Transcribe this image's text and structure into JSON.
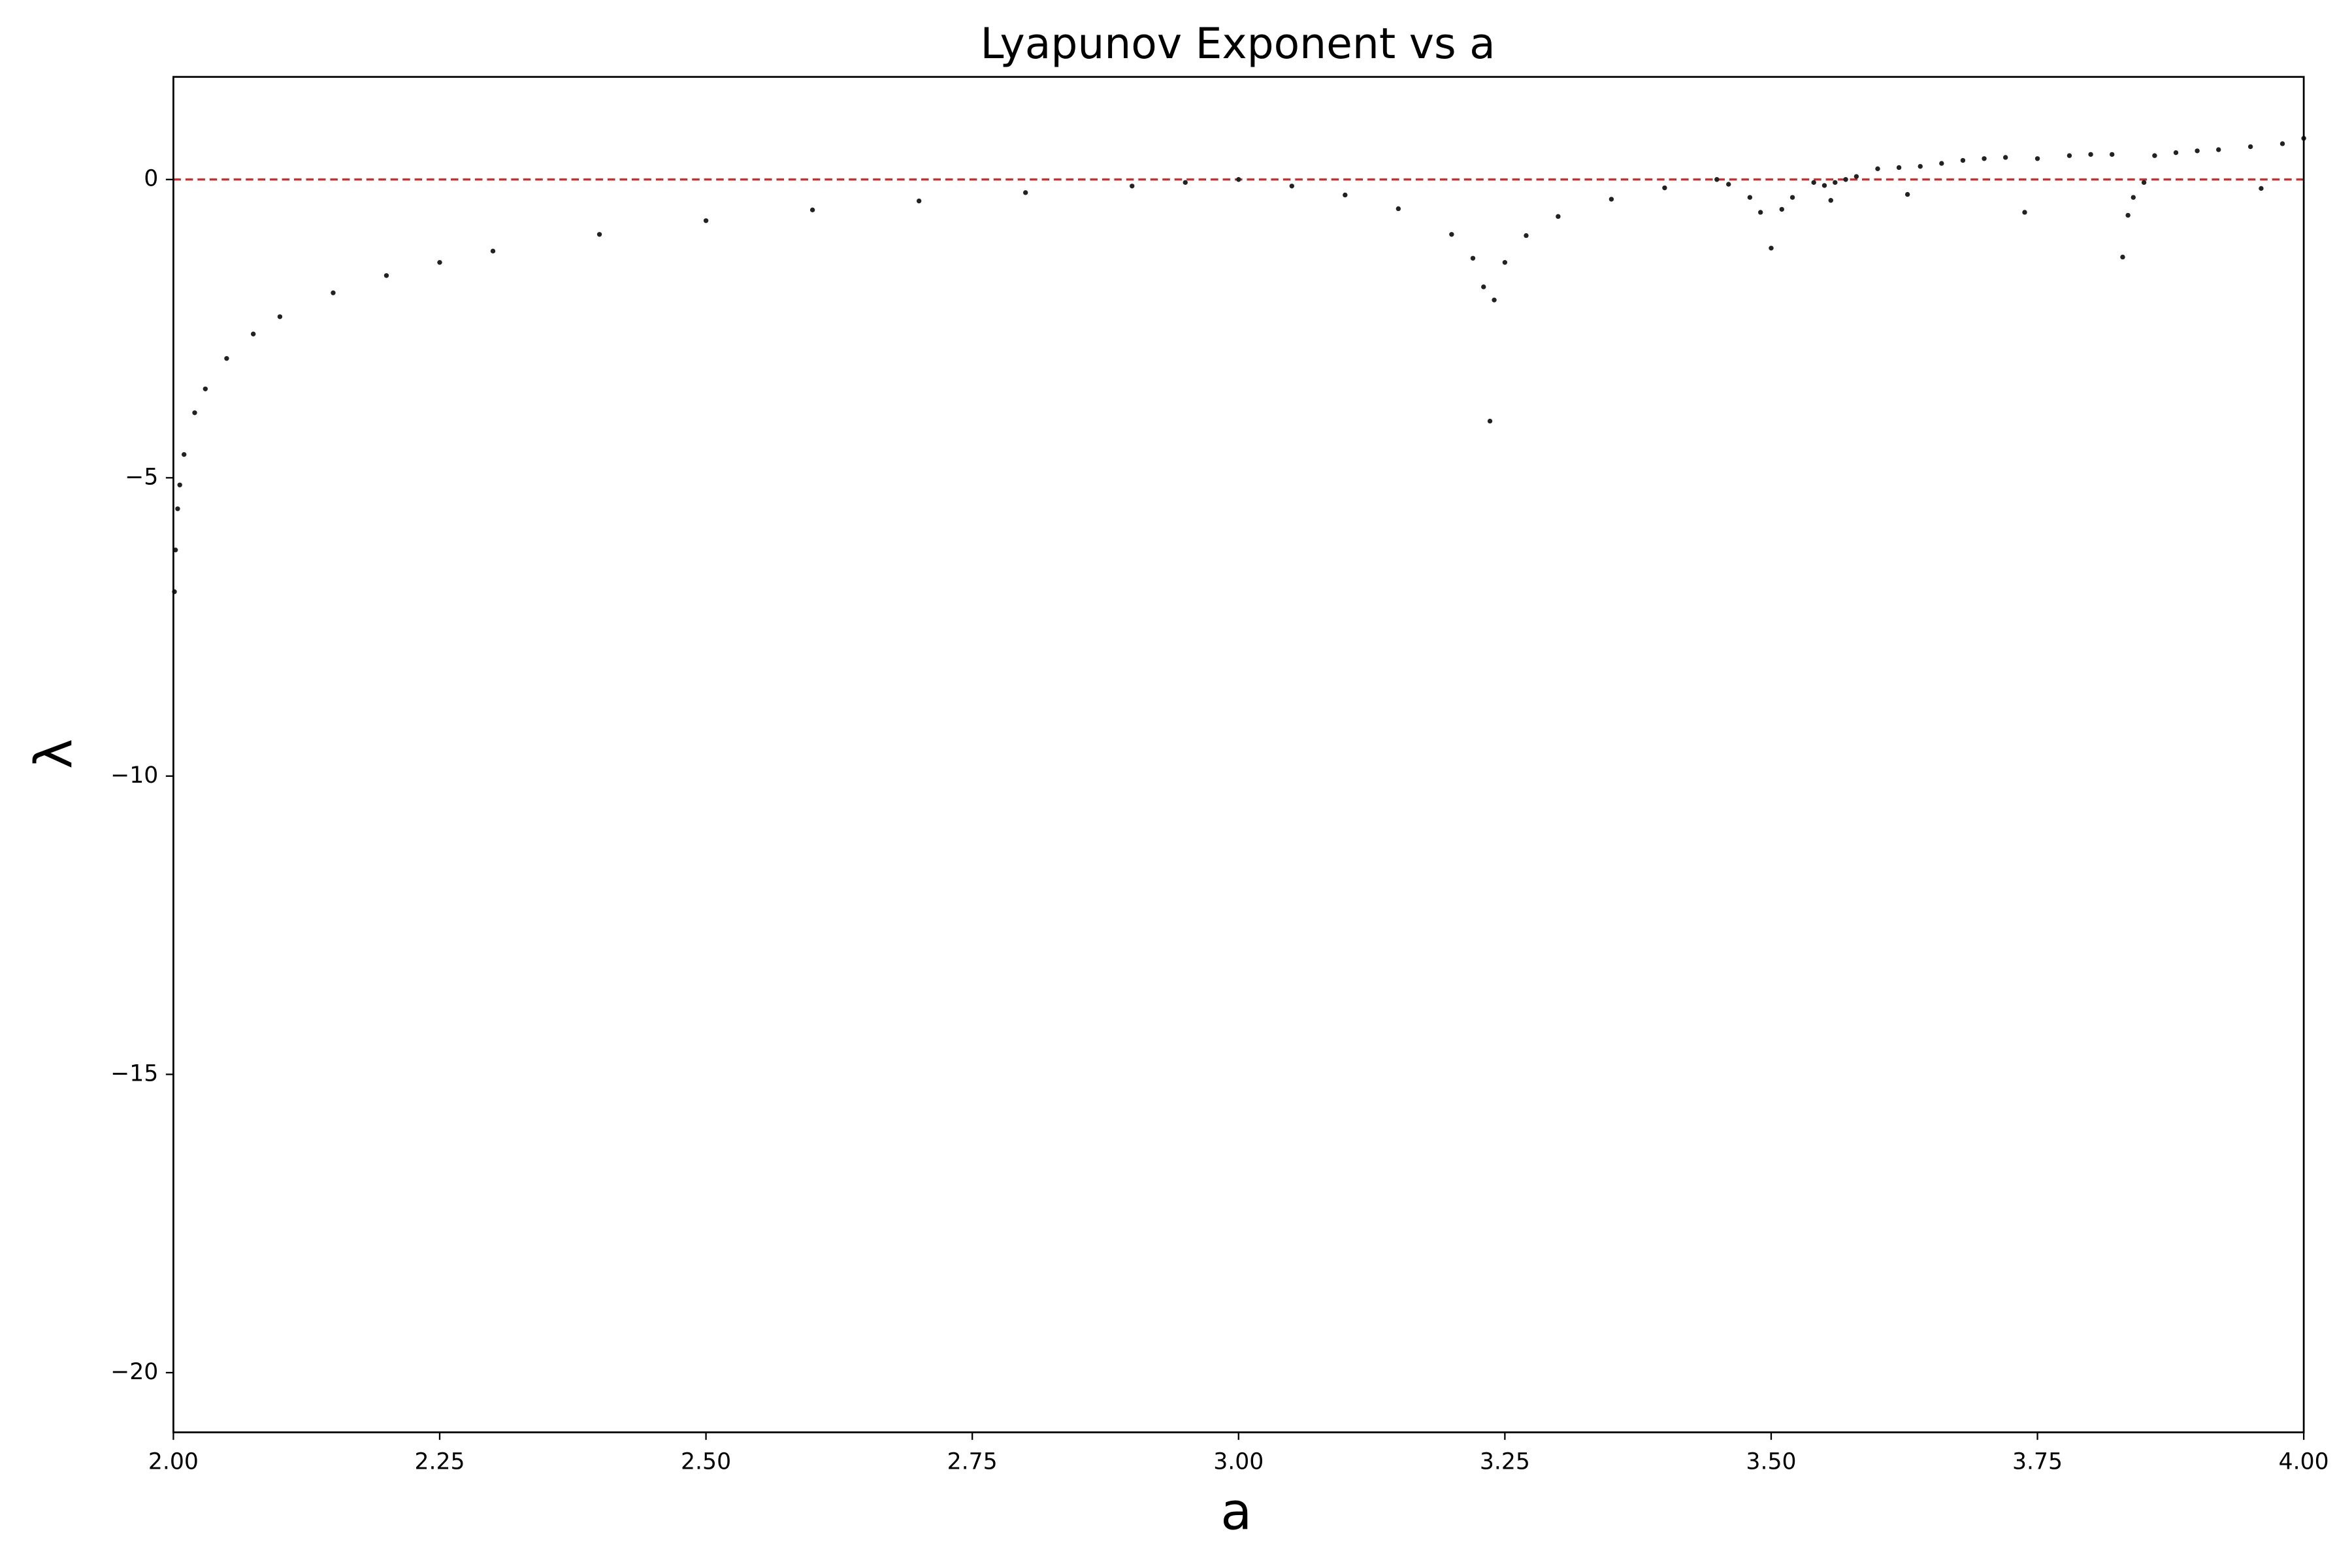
{
  "chart_data": {
    "type": "scatter",
    "title": "Lyapunov Exponent vs a",
    "x_label": "a",
    "y_label": "λ",
    "x": [
      2.001,
      2.002,
      2.004,
      2.006,
      2.01,
      2.02,
      2.03,
      2.05,
      2.075,
      2.1,
      2.15,
      2.2,
      2.25,
      2.3,
      2.4,
      2.5,
      2.6,
      2.7,
      2.8,
      2.9,
      2.95,
      3.0,
      3.05,
      3.1,
      3.15,
      3.2,
      3.22,
      3.23,
      3.236,
      3.24,
      3.25,
      3.27,
      3.3,
      3.35,
      3.4,
      3.449,
      3.46,
      3.48,
      3.49,
      3.5,
      3.51,
      3.52,
      3.54,
      3.55,
      3.556,
      3.56,
      3.57,
      3.58,
      3.6,
      3.62,
      3.628,
      3.64,
      3.66,
      3.68,
      3.7,
      3.72,
      3.738,
      3.75,
      3.78,
      3.8,
      3.82,
      3.83,
      3.835,
      3.84,
      3.85,
      3.86,
      3.88,
      3.9,
      3.92,
      3.95,
      3.96,
      3.98,
      4.0
    ],
    "values": [
      -6.91,
      -6.21,
      -5.52,
      -5.12,
      -4.61,
      -3.91,
      -3.51,
      -3.0,
      -2.59,
      -2.3,
      -1.9,
      -1.61,
      -1.39,
      -1.2,
      -0.92,
      -0.69,
      -0.51,
      -0.36,
      -0.22,
      -0.11,
      -0.05,
      0,
      -0.11,
      -0.26,
      -0.49,
      -0.92,
      -1.32,
      -1.8,
      -4.05,
      -2.02,
      -1.39,
      -0.94,
      -0.62,
      -0.33,
      -0.14,
      0,
      -0.08,
      -0.3,
      -0.55,
      -1.15,
      -0.5,
      -0.3,
      -0.05,
      -0.1,
      -0.35,
      -0.05,
      0.0,
      0.05,
      0.18,
      0.2,
      -0.25,
      0.22,
      0.27,
      0.32,
      0.35,
      0.37,
      -0.55,
      0.35,
      0.4,
      0.42,
      0.42,
      -1.3,
      -0.6,
      -0.3,
      -0.05,
      0.4,
      0.45,
      0.48,
      0.5,
      0.55,
      -0.15,
      0.6,
      0.69
    ],
    "color": "#222222",
    "reference_line": {
      "y": 0,
      "color": "#d62728",
      "dashed": true
    },
    "xlim": [
      2.0,
      4.0
    ],
    "xticks": [
      {
        "value": 2.0,
        "label": "2.00"
      },
      {
        "value": 2.25,
        "label": "2.25"
      },
      {
        "value": 2.5,
        "label": "2.50"
      },
      {
        "value": 2.75,
        "label": "2.75"
      },
      {
        "value": 3.0,
        "label": "3.00"
      },
      {
        "value": 3.25,
        "label": "3.25"
      },
      {
        "value": 3.5,
        "label": "3.50"
      },
      {
        "value": 3.75,
        "label": "3.75"
      },
      {
        "value": 4.0,
        "label": "4.00"
      }
    ],
    "ylim": [
      -21.0,
      1.72
    ],
    "yticks": [
      {
        "value": -20,
        "label": "−20"
      },
      {
        "value": -15,
        "label": "−15"
      },
      {
        "value": -10,
        "label": "−10"
      },
      {
        "value": -5,
        "label": "−5"
      },
      0
    ],
    "grid": false
  }
}
